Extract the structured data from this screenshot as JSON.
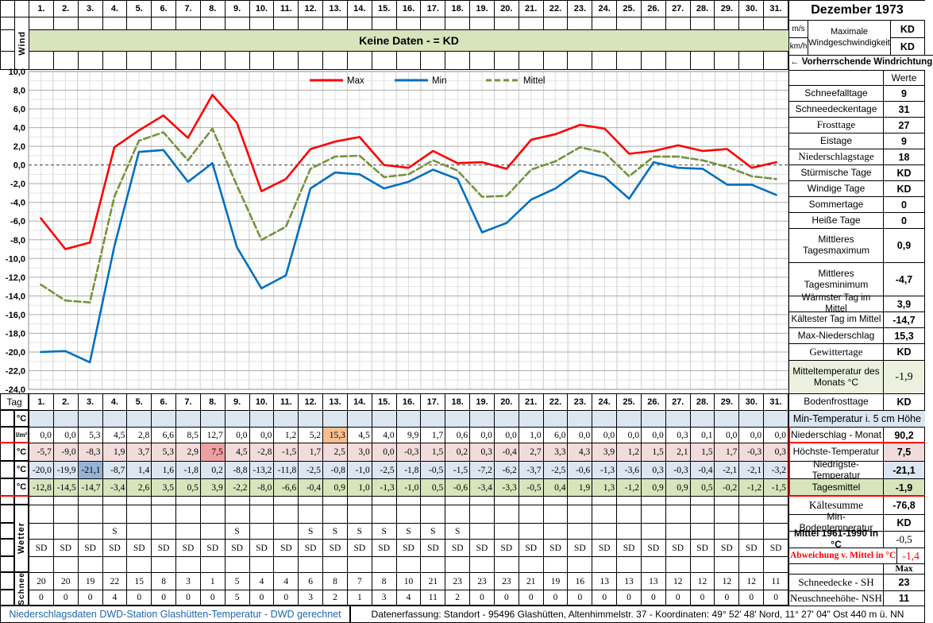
{
  "month_title": "Dezember 1973",
  "wind_section": {
    "row_label": "Wind",
    "banner": "Keine Daten -  = KD",
    "unit_ms": "m/s",
    "unit_kmh": "km/h",
    "max_wind_label": "Maximale Windgeschwindigkeit",
    "max_wind_ms": "KD",
    "max_wind_kmh": "KD",
    "direction_label": "←  Vorherrschende Windrichtung"
  },
  "days": [
    "1.",
    "2.",
    "3.",
    "4.",
    "5.",
    "6.",
    "7.",
    "8.",
    "9.",
    "10.",
    "11.",
    "12.",
    "13.",
    "14.",
    "15.",
    "16.",
    "17.",
    "18.",
    "19.",
    "20.",
    "21.",
    "22.",
    "23.",
    "24.",
    "25.",
    "26.",
    "27.",
    "28.",
    "29.",
    "30.",
    "31."
  ],
  "chart_data": {
    "type": "line",
    "x": [
      1,
      2,
      3,
      4,
      5,
      6,
      7,
      8,
      9,
      10,
      11,
      12,
      13,
      14,
      15,
      16,
      17,
      18,
      19,
      20,
      21,
      22,
      23,
      24,
      25,
      26,
      27,
      28,
      29,
      30,
      31
    ],
    "series": [
      {
        "name": "Max",
        "color": "#FF0000",
        "dashed": false,
        "values": [
          -5.7,
          -9.0,
          -8.3,
          1.9,
          3.7,
          5.3,
          2.9,
          7.5,
          4.5,
          -2.8,
          -1.5,
          1.7,
          2.5,
          3.0,
          0.0,
          -0.3,
          1.5,
          0.2,
          0.3,
          -0.4,
          2.7,
          3.3,
          4.3,
          3.9,
          1.2,
          1.5,
          2.1,
          1.5,
          1.7,
          -0.3,
          0.3
        ]
      },
      {
        "name": "Min",
        "color": "#0070C0",
        "dashed": false,
        "values": [
          -20.0,
          -19.9,
          -21.1,
          -8.7,
          1.4,
          1.6,
          -1.8,
          0.2,
          -8.8,
          -13.2,
          -11.8,
          -2.5,
          -0.8,
          -1.0,
          -2.5,
          -1.8,
          -0.5,
          -1.5,
          -7.2,
          -6.2,
          -3.7,
          -2.5,
          -0.6,
          -1.3,
          -3.6,
          0.3,
          -0.3,
          -0.4,
          -2.1,
          -2.1,
          -3.2
        ]
      },
      {
        "name": "Mittel",
        "color": "#76933C",
        "dashed": true,
        "values": [
          -12.8,
          -14.5,
          -14.7,
          -3.4,
          2.6,
          3.5,
          0.5,
          3.9,
          -2.2,
          -8.0,
          -6.6,
          -0.4,
          0.9,
          1.0,
          -1.3,
          -1.0,
          0.5,
          -0.6,
          -3.4,
          -3.3,
          -0.5,
          0.4,
          1.9,
          1.3,
          -1.2,
          0.9,
          0.9,
          0.5,
          -0.2,
          -1.2,
          -1.5
        ]
      }
    ],
    "ylim": [
      -24,
      10
    ],
    "ytick_step": 2,
    "grid": true,
    "legend_position": "top-center",
    "title": "",
    "xlabel": "",
    "ylabel": ""
  },
  "table": {
    "tag_label": "Tag",
    "deg_label": "°C",
    "precip_label": "l/m²",
    "wetter_label": "Wetter",
    "schnee_label": "Schnee",
    "rows": {
      "temp5cm": [
        "",
        "",
        "",
        "",
        "",
        "",
        "",
        "",
        "",
        "",
        "",
        "",
        "",
        "",
        "",
        "",
        "",
        "",
        "",
        "",
        "",
        "",
        "",
        "",
        "",
        "",
        "",
        "",
        "",
        "",
        ""
      ],
      "precip": [
        "0,0",
        "0,0",
        "5,3",
        "4,5",
        "2,8",
        "6,6",
        "8,5",
        "12,7",
        "0,0",
        "0,0",
        "1,2",
        "5,2",
        "15,3",
        "4,5",
        "4,0",
        "9,9",
        "1,7",
        "0,6",
        "0,0",
        "0,0",
        "1,0",
        "6,0",
        "0,0",
        "0,0",
        "0,0",
        "0,0",
        "0,3",
        "0,1",
        "0,0",
        "0,0",
        "0,0"
      ],
      "tmax": [
        "-5,7",
        "-9,0",
        "-8,3",
        "1,9",
        "3,7",
        "5,3",
        "2,9",
        "7,5",
        "4,5",
        "-2,8",
        "-1,5",
        "1,7",
        "2,5",
        "3,0",
        "0,0",
        "-0,3",
        "1,5",
        "0,2",
        "0,3",
        "-0,4",
        "2,7",
        "3,3",
        "4,3",
        "3,9",
        "1,2",
        "1,5",
        "2,1",
        "1,5",
        "1,7",
        "-0,3",
        "0,3"
      ],
      "tmin": [
        "-20,0",
        "-19,9",
        "-21,1",
        "-8,7",
        "1,4",
        "1,6",
        "-1,8",
        "0,2",
        "-8,8",
        "-13,2",
        "-11,8",
        "-2,5",
        "-0,8",
        "-1,0",
        "-2,5",
        "-1,8",
        "-0,5",
        "-1,5",
        "-7,2",
        "-6,2",
        "-3,7",
        "-2,5",
        "-0,6",
        "-1,3",
        "-3,6",
        "0,3",
        "-0,3",
        "-0,4",
        "-2,1",
        "-2,1",
        "-3,2"
      ],
      "tmittel": [
        "-12,8",
        "-14,5",
        "-14,7",
        "-3,4",
        "2,6",
        "3,5",
        "0,5",
        "3,9",
        "-2,2",
        "-8,0",
        "-6,6",
        "-0,4",
        "0,9",
        "1,0",
        "-1,3",
        "-1,0",
        "0,5",
        "-0,6",
        "-3,4",
        "-3,3",
        "-0,5",
        "0,4",
        "1,9",
        "1,3",
        "-1,2",
        "0,9",
        "0,9",
        "0,5",
        "-0,2",
        "-1,2",
        "-1,5"
      ],
      "weather_s": [
        "",
        "",
        "",
        "S",
        "",
        "",
        "",
        "",
        "S",
        "",
        "",
        "S",
        "S",
        "S",
        "S",
        "S",
        "S",
        "S",
        "",
        "",
        "",
        "",
        "",
        "",
        "",
        "",
        "",
        "",
        "",
        "",
        ""
      ],
      "weather_sd": [
        "SD",
        "SD",
        "SD",
        "SD",
        "SD",
        "SD",
        "SD",
        "SD",
        "SD",
        "SD",
        "SD",
        "SD",
        "SD",
        "SD",
        "SD",
        "SD",
        "SD",
        "SD",
        "SD",
        "SD",
        "SD",
        "SD",
        "SD",
        "SD",
        "SD",
        "SD",
        "SD",
        "SD",
        "SD",
        "SD",
        "SD"
      ],
      "snow_sh": [
        "20",
        "20",
        "19",
        "22",
        "15",
        "8",
        "3",
        "1",
        "5",
        "4",
        "4",
        "6",
        "8",
        "7",
        "8",
        "10",
        "21",
        "23",
        "23",
        "23",
        "21",
        "19",
        "16",
        "13",
        "13",
        "13",
        "12",
        "12",
        "12",
        "12",
        "11"
      ],
      "snow_nsh": [
        "0",
        "0",
        "0",
        "4",
        "0",
        "0",
        "0",
        "0",
        "5",
        "0",
        "0",
        "3",
        "2",
        "1",
        "3",
        "4",
        "11",
        "2",
        "0",
        "0",
        "0",
        "0",
        "0",
        "0",
        "0",
        "0",
        "0",
        "0",
        "0",
        "0",
        "0"
      ]
    },
    "highlights": {
      "precip_day": 13,
      "tmax_day": 8,
      "tmin_day": 3
    }
  },
  "stats": {
    "werte_header": "Werte",
    "schneefalltage": {
      "label": "Schneefalltage",
      "value": "9"
    },
    "schneedeckentage": {
      "label": "Schneedeckentage",
      "value": "31"
    },
    "frosttage": {
      "label": "Frosttage",
      "value": "27"
    },
    "eistage": {
      "label": "Eistage",
      "value": "9"
    },
    "niederschlagstage": {
      "label": "Niederschlagstage",
      "value": "18"
    },
    "stuermische_tage": {
      "label": "Stürmische Tage",
      "value": "KD"
    },
    "windige_tage": {
      "label": "Windige Tage",
      "value": "KD"
    },
    "sommertage": {
      "label": "Sommertage",
      "value": "0"
    },
    "heisse_tage": {
      "label": "Heiße Tage",
      "value": "0"
    },
    "mittleres_tagesmaximum": {
      "label": "Mittleres Tagesmaximum",
      "value": "0,9"
    },
    "mittleres_tagesminimum": {
      "label": "Mittleres Tagesminimum",
      "value": "-4,7"
    },
    "waermster_tag": {
      "label": "Wärmster Tag im Mittel",
      "value": "3,9"
    },
    "kaeltester_tag": {
      "label": "Kältester Tag im Mittel",
      "value": "-14,7"
    },
    "max_niederschlag": {
      "label": "Max-Niederschlag",
      "value": "15,3"
    },
    "gewittertage": {
      "label": "Gewittertage",
      "value": "KD"
    },
    "mitteltemperatur": {
      "label": "Mitteltemperatur des Monats °C",
      "value": "-1,9"
    },
    "bodenfrosttage": {
      "label": "Bodenfrosttage",
      "value": "KD"
    },
    "min_temp_5cm": {
      "label": "Min-Temperatur i. 5 cm Höhe",
      "value": ""
    },
    "niederschlag_monat": {
      "label": "Niederschlag - Monat",
      "value": "90,2"
    },
    "hoechste_temperatur": {
      "label": "Höchste-Temperatur",
      "value": "7,5"
    },
    "niedrigste_temperatur": {
      "label": "Niedrigste-Temperatur",
      "value": "-21,1"
    },
    "tagesmittel": {
      "label": "Tagesmittel",
      "value": "-1,9"
    },
    "kaeltesumme": {
      "label": "Kältesumme",
      "value": "-76,8"
    },
    "min_bodentemperatur": {
      "label": "Min-Bodentemperatur",
      "value": "KD"
    },
    "mittel_1961_1990": {
      "label": "Mittel 1961-1990 in °C",
      "value": "-0,5"
    },
    "abweichung": {
      "label": "Abweichung v. Mittel in °C",
      "value": "-1,4"
    },
    "max_header": "Max",
    "schneedecke": {
      "label": "Schneedecke -   SH",
      "value": "23"
    },
    "neuschneehoehe": {
      "label": "Neuschneehöhe- NSH",
      "value": "11"
    }
  },
  "footer": {
    "left": "Niederschlagsdaten DWD-Station Glashütten-Temperatur -  DWD gerechnet",
    "right": "Datenerfassung:  Standort -  95496  Glashütten, Altenhimmelstr. 37 - Koordinaten:  49° 52' 48' Nord,   11° 27' 04\" Ost  440 m ü. NN"
  },
  "colors": {
    "banner_green": "#D8E4BC",
    "light_green": "#EBF1DE",
    "row_pink": "#F2DCDB",
    "row_blue": "#DCE6F1",
    "row_green": "#D8E4BC",
    "hl_orange": "#FABF8F",
    "hl_red": "#EFA0A0",
    "hl_blue": "#95B3D7",
    "accent_red": "#FF0000",
    "footer_blue": "#2166AC",
    "max_line": "#FF0000",
    "min_line": "#0070C0",
    "mittel_line": "#76933C"
  }
}
